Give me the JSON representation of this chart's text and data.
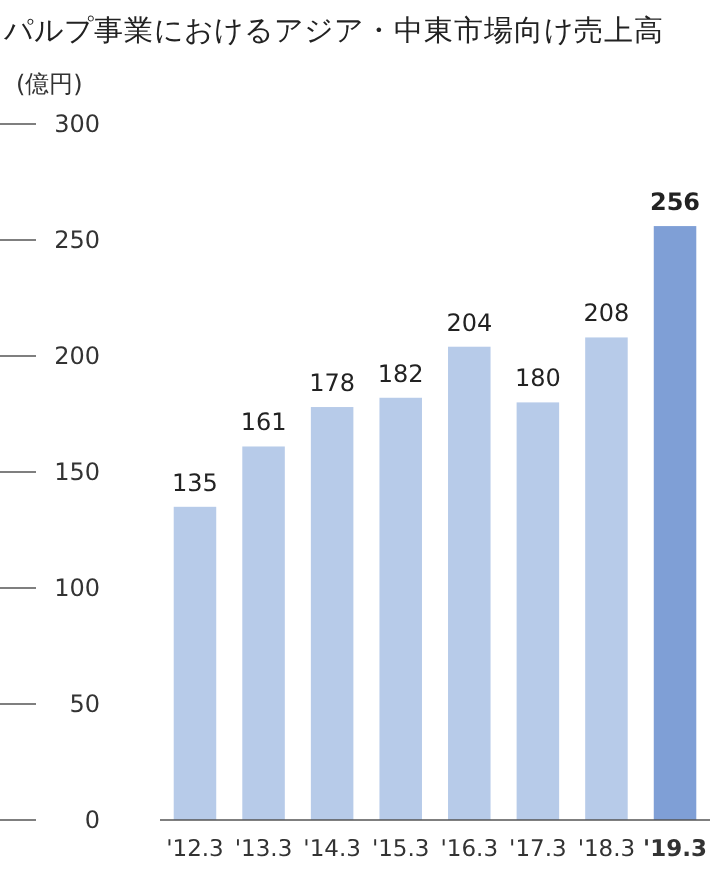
{
  "chart_data": {
    "type": "bar",
    "title": "パルプ事業におけるアジア・中東市場向け売上高",
    "ylabel": "(億円)",
    "categories": [
      "'12.3",
      "'13.3",
      "'14.3",
      "'15.3",
      "'16.3",
      "'17.3",
      "'18.3",
      "'19.3"
    ],
    "values": [
      135,
      161,
      178,
      182,
      204,
      180,
      208,
      256
    ],
    "colors": [
      "#b7cbe9",
      "#b7cbe9",
      "#b7cbe9",
      "#b7cbe9",
      "#b7cbe9",
      "#b7cbe9",
      "#b7cbe9",
      "#7f9fd6"
    ],
    "ylim": [
      0,
      300
    ],
    "yticks": [
      0,
      50,
      100,
      150,
      200,
      250,
      300
    ],
    "data_labels": true,
    "grid": false
  }
}
